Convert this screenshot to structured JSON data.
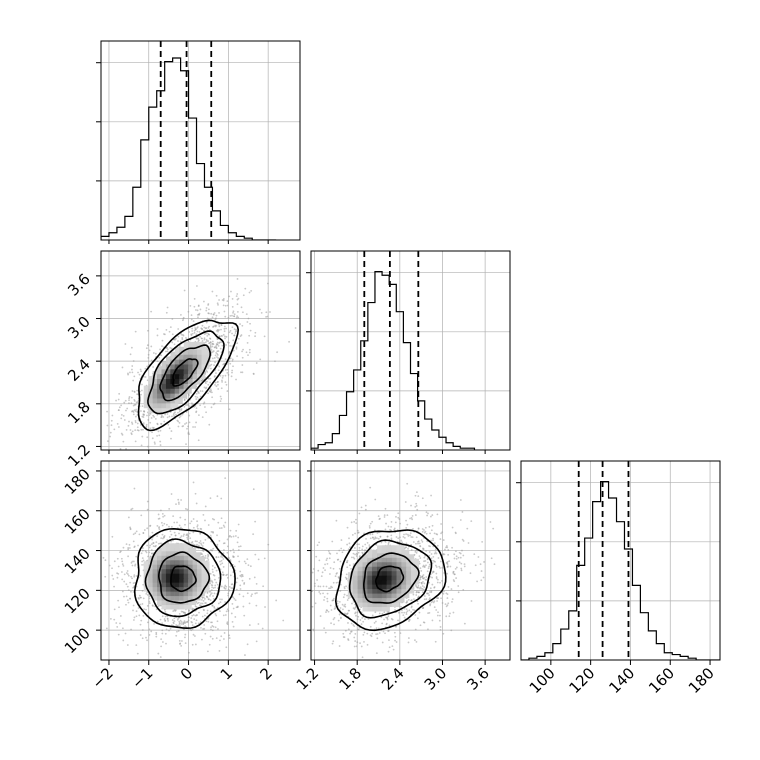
{
  "chart_data": {
    "type": "corner",
    "parameters": [
      {
        "key": "p0",
        "range": [
          -2.2,
          2.8
        ],
        "ticks": [
          -2,
          -1,
          0,
          1,
          2
        ],
        "tick_labels": [
          "−2",
          "−1",
          "0",
          "1",
          "2"
        ],
        "quantiles": [
          -0.7,
          -0.05,
          0.57
        ],
        "hist_bin_edges": [
          -2.2,
          -2.0,
          -1.8,
          -1.6,
          -1.4,
          -1.2,
          -1.0,
          -0.8,
          -0.6,
          -0.4,
          -0.2,
          0.0,
          0.2,
          0.4,
          0.6,
          0.8,
          1.0,
          1.2,
          1.4,
          1.6,
          1.8,
          2.0,
          2.2
        ],
        "hist_counts": [
          0.02,
          0.04,
          0.07,
          0.13,
          0.29,
          0.55,
          0.73,
          0.82,
          0.98,
          1.0,
          0.93,
          0.67,
          0.42,
          0.29,
          0.16,
          0.08,
          0.04,
          0.02,
          0.01,
          0.0,
          0.0,
          0.0
        ]
      },
      {
        "key": "p1",
        "range": [
          1.15,
          3.95
        ],
        "ticks": [
          1.2,
          1.8,
          2.4,
          3.0,
          3.6
        ],
        "tick_labels": [
          "1.2",
          "1.8",
          "2.4",
          "3.0",
          "3.6"
        ],
        "quantiles": [
          1.9,
          2.26,
          2.66
        ],
        "hist_bin_edges": [
          1.15,
          1.25,
          1.35,
          1.45,
          1.55,
          1.65,
          1.75,
          1.85,
          1.95,
          2.05,
          2.15,
          2.25,
          2.35,
          2.45,
          2.55,
          2.65,
          2.75,
          2.85,
          2.95,
          3.05,
          3.15,
          3.25,
          3.35,
          3.45
        ],
        "hist_counts": [
          0.01,
          0.03,
          0.04,
          0.09,
          0.19,
          0.32,
          0.44,
          0.6,
          0.81,
          0.98,
          0.96,
          0.91,
          0.76,
          0.59,
          0.42,
          0.27,
          0.17,
          0.11,
          0.07,
          0.04,
          0.02,
          0.01,
          0.01
        ]
      },
      {
        "key": "p2",
        "range": [
          85,
          185
        ],
        "ticks": [
          100,
          120,
          140,
          160,
          180
        ],
        "tick_labels": [
          "100",
          "120",
          "140",
          "160",
          "180"
        ],
        "quantiles": [
          114,
          126,
          139
        ],
        "hist_bin_edges": [
          85,
          89,
          93,
          97,
          101,
          105,
          109,
          113,
          117,
          121,
          125,
          129,
          133,
          137,
          141,
          145,
          149,
          153,
          157,
          161,
          165,
          169,
          173,
          177,
          181,
          185
        ],
        "hist_counts": [
          0.0,
          0.01,
          0.02,
          0.04,
          0.09,
          0.17,
          0.27,
          0.52,
          0.67,
          0.87,
          0.98,
          0.89,
          0.76,
          0.61,
          0.41,
          0.26,
          0.16,
          0.09,
          0.04,
          0.03,
          0.02,
          0.01,
          0.0,
          0.0,
          0.0
        ]
      }
    ],
    "pairs": [
      {
        "x": "p0",
        "y": "p1",
        "center": [
          -0.1,
          2.25
        ],
        "sigma": [
          0.62,
          0.38
        ],
        "rho": 0.65,
        "contour_levels": [
          0.5,
          1.0,
          1.5,
          2.0
        ],
        "density_center": [
          -0.3,
          2.17
        ]
      },
      {
        "x": "p0",
        "y": "p2",
        "center": [
          -0.15,
          126
        ],
        "sigma": [
          0.62,
          12.5
        ],
        "rho": 0.0,
        "contour_levels": [
          0.5,
          1.0,
          1.5,
          2.0
        ],
        "density_center": [
          -0.3,
          127
        ]
      },
      {
        "x": "p1",
        "y": "p2",
        "center": [
          2.25,
          126
        ],
        "sigma": [
          0.38,
          12.5
        ],
        "rho": 0.2,
        "contour_levels": [
          0.5,
          1.0,
          1.5,
          2.0
        ],
        "density_center": [
          2.17,
          126
        ]
      }
    ],
    "grid": true,
    "hist_style": "step",
    "quantile_lines": "dashed"
  }
}
